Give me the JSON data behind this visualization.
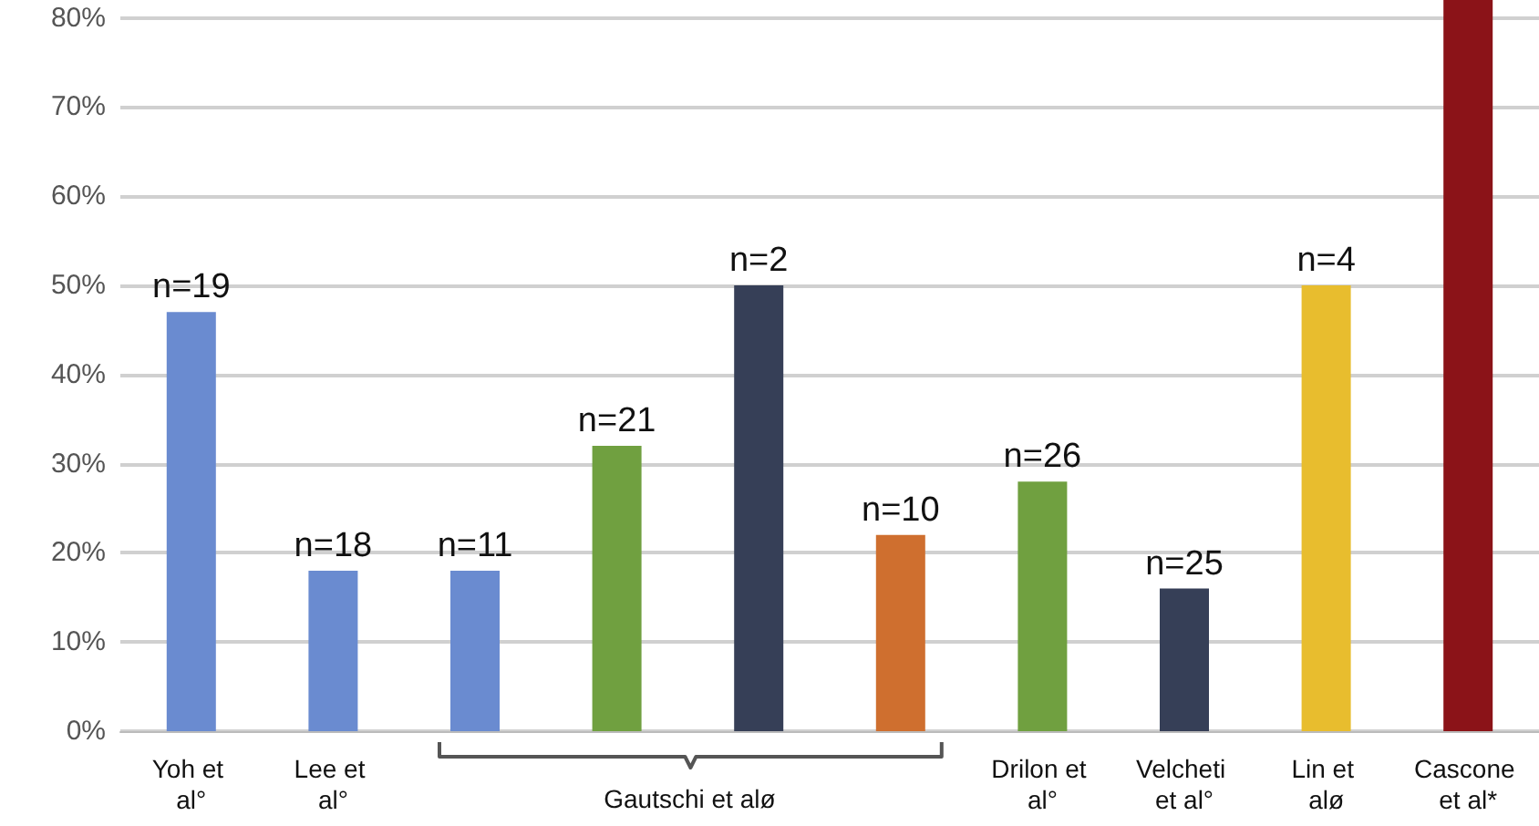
{
  "chart_data": {
    "type": "bar",
    "categories": [
      "Yoh et al°",
      "Lee et al°",
      null,
      null,
      null,
      null,
      "Drilon et al°",
      "Velcheti et al°",
      "Lin et alø",
      "Cascone et al*"
    ],
    "values": [
      47,
      18,
      18,
      32,
      50,
      22,
      28,
      16,
      50,
      82
    ],
    "colors": [
      "#6a8bd0",
      "#6a8bd0",
      "#6a8bd0",
      "#70a040",
      "#363f57",
      "#cf6f2f",
      "#70a040",
      "#363f57",
      "#e8bd2e",
      "#8b1318"
    ],
    "annotations": [
      "Gautschi et alø",
      {
        "text": "n=19",
        "x": "Yoh et al°",
        "y": 47
      },
      {
        "text": "n=18",
        "x": "Lee et al°",
        "y": 18
      },
      {
        "text": "n=11",
        "y": 18
      },
      {
        "text": "n=21",
        "y": 32
      },
      {
        "text": "n=2",
        "y": 50
      },
      {
        "text": "n=10",
        "y": 22
      },
      {
        "text": "n=26",
        "x": "Drilon et al°",
        "y": 28
      },
      {
        "text": "n=25",
        "x": "Velcheti et al°",
        "y": 16
      },
      {
        "text": "n=4",
        "x": "Lin et alø",
        "y": 50
      }
    ],
    "ylim": [
      0,
      82
    ],
    "yticks": [
      {
        "value": 0,
        "label": "0%"
      },
      {
        "value": 10,
        "label": "10%"
      },
      {
        "value": 20,
        "label": "20%"
      },
      {
        "value": 30,
        "label": "30%"
      },
      {
        "value": 40,
        "label": "40%"
      },
      {
        "value": 50,
        "label": "50%"
      },
      {
        "value": 60,
        "label": "60%"
      },
      {
        "value": 70,
        "label": "70%"
      },
      {
        "value": 80,
        "label": "80%"
      }
    ],
    "grid": "y"
  }
}
